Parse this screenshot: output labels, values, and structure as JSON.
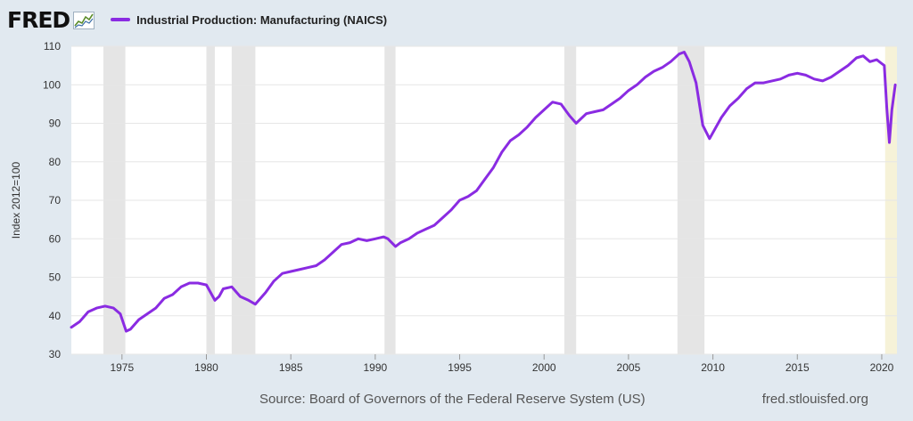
{
  "header": {
    "brand": "FRED"
  },
  "footer": {
    "source": "Source: Board of Governors of the Federal Reserve System (US)",
    "url": "fred.stlouisfed.org"
  },
  "chart_data": {
    "type": "line",
    "title": "",
    "xlabel": "",
    "ylabel": "Index 2012=100",
    "series": [
      {
        "name": "Industrial Production: Manufacturing (NAICS)",
        "color": "#8a2be2",
        "x": [
          1972.0,
          1972.5,
          1973.0,
          1973.5,
          1974.0,
          1974.5,
          1974.9,
          1975.25,
          1975.5,
          1976.0,
          1976.5,
          1977.0,
          1977.5,
          1978.0,
          1978.5,
          1979.0,
          1979.5,
          1980.0,
          1980.5,
          1980.75,
          1981.0,
          1981.5,
          1982.0,
          1982.5,
          1982.9,
          1983.5,
          1984.0,
          1984.5,
          1985.0,
          1985.5,
          1986.0,
          1986.5,
          1987.0,
          1987.5,
          1988.0,
          1988.5,
          1989.0,
          1989.5,
          1990.0,
          1990.5,
          1990.75,
          1991.2,
          1991.5,
          1992.0,
          1992.5,
          1993.0,
          1993.5,
          1994.0,
          1994.5,
          1995.0,
          1995.5,
          1996.0,
          1996.5,
          1997.0,
          1997.5,
          1998.0,
          1998.5,
          1999.0,
          1999.5,
          2000.0,
          2000.5,
          2001.0,
          2001.5,
          2001.9,
          2002.5,
          2003.0,
          2003.5,
          2004.0,
          2004.5,
          2005.0,
          2005.5,
          2006.0,
          2006.5,
          2007.0,
          2007.5,
          2008.0,
          2008.3,
          2008.6,
          2009.0,
          2009.4,
          2009.8,
          2010.5,
          2011.0,
          2011.5,
          2012.0,
          2012.5,
          2013.0,
          2013.5,
          2014.0,
          2014.5,
          2015.0,
          2015.5,
          2016.0,
          2016.5,
          2017.0,
          2017.5,
          2018.0,
          2018.5,
          2018.9,
          2019.3,
          2019.7,
          2020.0,
          2020.15,
          2020.3,
          2020.45,
          2020.6,
          2020.8
        ],
        "values": [
          37.0,
          38.5,
          41.0,
          42.0,
          42.5,
          42.0,
          40.5,
          36.0,
          36.5,
          39.0,
          40.5,
          42.0,
          44.5,
          45.5,
          47.5,
          48.5,
          48.5,
          48.0,
          44.0,
          45.0,
          47.0,
          47.5,
          45.0,
          44.0,
          43.0,
          46.0,
          49.0,
          51.0,
          51.5,
          52.0,
          52.5,
          53.0,
          54.5,
          56.5,
          58.5,
          59.0,
          60.0,
          59.5,
          60.0,
          60.5,
          60.0,
          58.0,
          59.0,
          60.0,
          61.5,
          62.5,
          63.5,
          65.5,
          67.5,
          70.0,
          71.0,
          72.5,
          75.5,
          78.5,
          82.5,
          85.5,
          87.0,
          89.0,
          91.5,
          93.5,
          95.5,
          95.0,
          92.0,
          90.0,
          92.5,
          93.0,
          93.5,
          95.0,
          96.5,
          98.5,
          100.0,
          102.0,
          103.5,
          104.5,
          106.0,
          108.0,
          108.5,
          106.0,
          100.5,
          89.5,
          86.0,
          91.5,
          94.5,
          96.5,
          99.0,
          100.5,
          100.5,
          101.0,
          101.5,
          102.5,
          103.0,
          102.5,
          101.5,
          101.0,
          102.0,
          103.5,
          105.0,
          107.0,
          107.5,
          106.0,
          106.5,
          105.5,
          105.0,
          94.0,
          85.0,
          93.5,
          100.0
        ]
      }
    ],
    "xlim": [
      1972.0,
      2020.9
    ],
    "ylim": [
      30,
      110
    ],
    "xticks": [
      1975,
      1980,
      1985,
      1990,
      1995,
      2000,
      2005,
      2010,
      2015,
      2020
    ],
    "yticks": [
      30,
      40,
      50,
      60,
      70,
      80,
      90,
      100,
      110
    ],
    "recessions": [
      {
        "start": 1973.9,
        "end": 1975.2
      },
      {
        "start": 1980.0,
        "end": 1980.5
      },
      {
        "start": 1981.5,
        "end": 1982.9
      },
      {
        "start": 1990.55,
        "end": 1991.2
      },
      {
        "start": 2001.2,
        "end": 2001.9
      },
      {
        "start": 2007.9,
        "end": 2009.5
      }
    ],
    "projection_band": {
      "start": 2020.2,
      "end": 2020.9,
      "color": "#f6f2d8"
    },
    "recession_color": "#e5e5e5",
    "grid": true,
    "legend_position": "top-left"
  }
}
